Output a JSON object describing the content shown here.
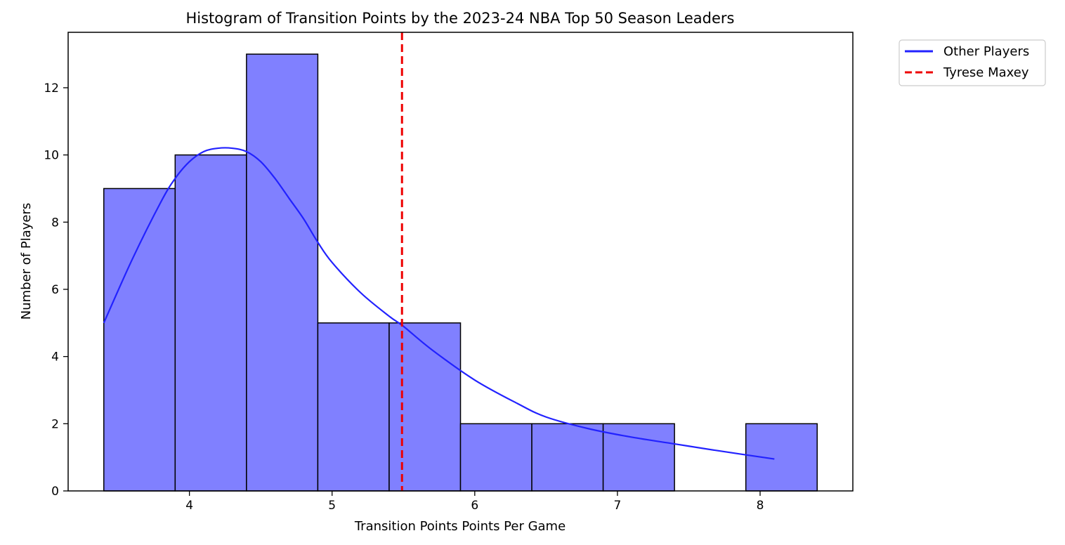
{
  "chart_data": {
    "type": "bar",
    "title": "Histogram of Transition Points by the 2023-24 NBA Top 50 Season Leaders",
    "xlabel": "Transition Points Points Per Game",
    "ylabel": "Number of Players",
    "xlim": [
      3.15,
      8.65
    ],
    "ylim": [
      0,
      13.65
    ],
    "xticks": [
      4,
      5,
      6,
      7,
      8
    ],
    "yticks": [
      0,
      2,
      4,
      6,
      8,
      10,
      12
    ],
    "bins": [
      {
        "start": 3.4,
        "end": 3.9,
        "count": 9
      },
      {
        "start": 3.9,
        "end": 4.4,
        "count": 10
      },
      {
        "start": 4.4,
        "end": 4.9,
        "count": 13
      },
      {
        "start": 4.9,
        "end": 5.4,
        "count": 5
      },
      {
        "start": 5.4,
        "end": 5.9,
        "count": 5
      },
      {
        "start": 5.9,
        "end": 6.4,
        "count": 2
      },
      {
        "start": 6.4,
        "end": 6.9,
        "count": 2
      },
      {
        "start": 6.9,
        "end": 7.4,
        "count": 2
      },
      {
        "start": 7.4,
        "end": 7.9,
        "count": 0
      },
      {
        "start": 7.9,
        "end": 8.4,
        "count": 2
      }
    ],
    "bar_color": "#8080ff",
    "bar_edge_color": "#000000",
    "kde_curve": {
      "name": "Other Players",
      "color": "#2222ff",
      "x": [
        3.4,
        3.6,
        3.8,
        3.9,
        4.0,
        4.1,
        4.2,
        4.3,
        4.4,
        4.5,
        4.6,
        4.7,
        4.8,
        4.9,
        5.0,
        5.2,
        5.4,
        5.5,
        5.7,
        6.0,
        6.3,
        6.5,
        6.8,
        7.1,
        7.4,
        7.7,
        8.1
      ],
      "y": [
        5.0,
        6.9,
        8.6,
        9.3,
        9.8,
        10.1,
        10.2,
        10.2,
        10.1,
        9.8,
        9.3,
        8.7,
        8.1,
        7.4,
        6.8,
        5.9,
        5.2,
        4.9,
        4.2,
        3.3,
        2.6,
        2.2,
        1.85,
        1.6,
        1.4,
        1.2,
        0.95
      ]
    },
    "reference_line": {
      "name": "Tyrese Maxey",
      "x": 5.49,
      "color": "#ee0000",
      "style": "dashed"
    },
    "legend": {
      "placement": "outside-top-right",
      "entries": [
        {
          "label": "Other Players",
          "color": "#2222ff",
          "style": "solid"
        },
        {
          "label": "Tyrese Maxey",
          "color": "#ee0000",
          "style": "dashed"
        }
      ]
    },
    "grid": false
  }
}
